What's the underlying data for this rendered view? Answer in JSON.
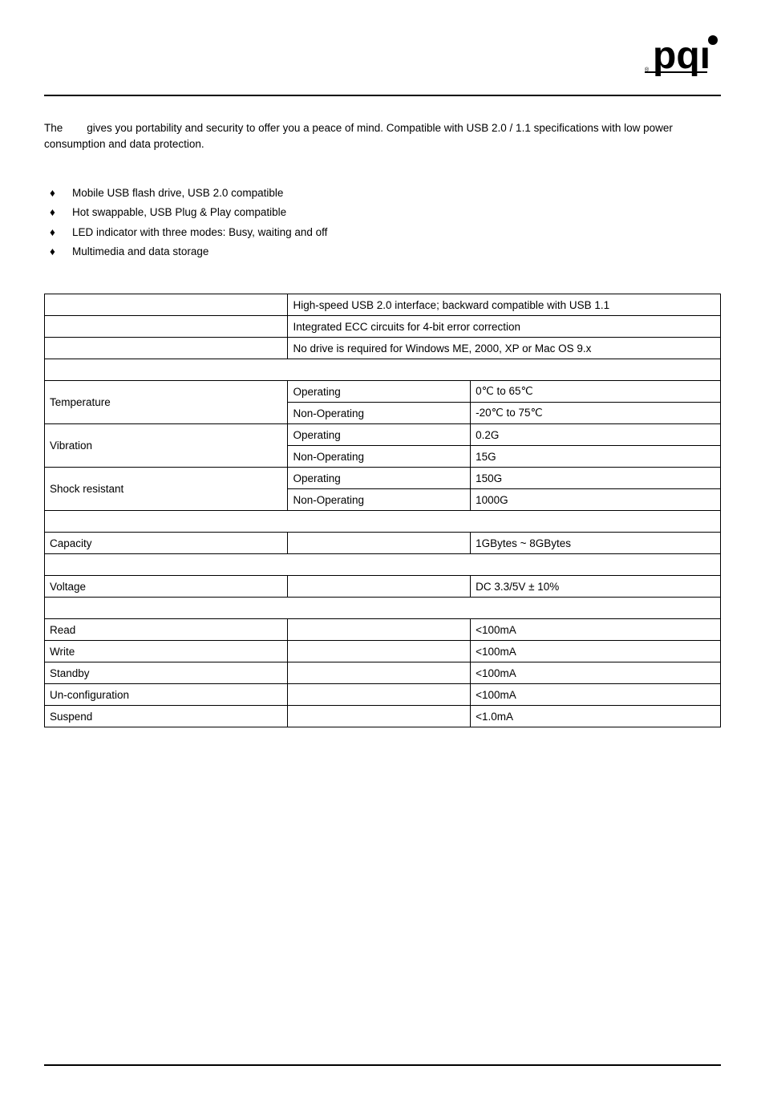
{
  "logo": {
    "text": "pqi",
    "color": "#000000",
    "dot_color": "#000000"
  },
  "intro": {
    "prefix": "The",
    "gap": "        ",
    "rest": "gives you portability and security to offer you a peace of mind. Compatible with USB 2.0 / 1.1 specifications with low power consumption and data protection."
  },
  "features": [
    "Mobile USB flash drive, USB 2.0 compatible",
    "Hot swappable, USB Plug & Play compatible",
    "LED indicator with three modes: Busy, waiting and off",
    "Multimedia and data storage"
  ],
  "spec": {
    "top_rows": [
      {
        "label": "",
        "value": "High-speed USB 2.0 interface; backward compatible with USB 1.1"
      },
      {
        "label": "",
        "value": "Integrated ECC circuits for 4-bit error correction"
      },
      {
        "label": "",
        "value": "No drive is required for Windows ME, 2000, XP or Mac OS 9.x"
      }
    ],
    "env_section": "",
    "env": [
      {
        "name": "Temperature",
        "rows": [
          {
            "k": "Operating",
            "v": "0℃ to 65℃"
          },
          {
            "k": "Non-Operating",
            "v": "-20℃ to 75℃"
          }
        ]
      },
      {
        "name": "Vibration",
        "rows": [
          {
            "k": "Operating",
            "v": "0.2G"
          },
          {
            "k": "Non-Operating",
            "v": "15G"
          }
        ]
      },
      {
        "name": "Shock resistant",
        "rows": [
          {
            "k": "Operating",
            "v": "150G"
          },
          {
            "k": "Non-Operating",
            "v": "1000G"
          }
        ]
      }
    ],
    "cap_section": "",
    "capacity": {
      "label": "Capacity",
      "mid": "",
      "value": "1GBytes ~ 8GBytes"
    },
    "volt_section": "",
    "voltage": {
      "label": "Voltage",
      "mid": "",
      "value": "DC 3.3/5V ± 10%"
    },
    "pwr_section": "",
    "power": [
      {
        "label": "Read",
        "mid": "",
        "value": "<100mA"
      },
      {
        "label": "Write",
        "mid": "",
        "value": "<100mA"
      },
      {
        "label": "Standby",
        "mid": "",
        "value": "<100mA"
      },
      {
        "label": "Un-configuration",
        "mid": "",
        "value": "<100mA"
      },
      {
        "label": "Suspend",
        "mid": "",
        "value": "<1.0mA"
      }
    ]
  },
  "layout": {
    "col1_pct": 36,
    "col2_pct": 27,
    "col3_pct": 37
  }
}
